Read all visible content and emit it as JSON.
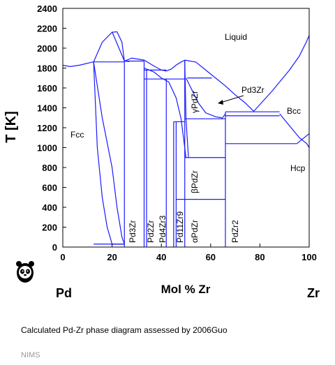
{
  "chart_data": {
    "type": "line",
    "ylabel": "T [K]",
    "xlabel": "Mol % Zr",
    "xlim": [
      0,
      100
    ],
    "ylim": [
      0,
      2400
    ],
    "x_ticks": [
      "0",
      "20",
      "40",
      "60",
      "80",
      "100"
    ],
    "y_ticks": [
      "0",
      "200",
      "400",
      "600",
      "800",
      "1000",
      "1200",
      "1400",
      "1600",
      "1800",
      "2000",
      "2200",
      "2400"
    ],
    "x_end_labels": {
      "left": "Pd",
      "right": "Zr"
    },
    "grid": false,
    "line_color": "#1a1aff",
    "phase_regions": [
      "Liquid",
      "Fcc",
      "Bcc",
      "Hcp"
    ],
    "compounds": [
      "Pd3Zr",
      "Pd2Zr",
      "Pd4Zr3",
      "Pd11Zr9",
      "αPdZr",
      "βPdZr",
      "γPdZr",
      "PdZr2"
    ],
    "compound_callout": "Pd3Zr",
    "series": [
      {
        "x": [
          0,
          3,
          7,
          12,
          12.5
        ],
        "y": [
          1828,
          1815,
          1830,
          1860,
          1862
        ]
      },
      {
        "x": [
          12.5,
          16,
          20,
          22,
          24,
          25
        ],
        "y": [
          1862,
          2060,
          2160,
          2165,
          2060,
          1870
        ]
      },
      {
        "x": [
          25,
          28,
          33,
          37,
          40,
          42
        ],
        "y": [
          1870,
          1900,
          1880,
          1820,
          1780,
          1770
        ]
      },
      {
        "x": [
          42,
          44,
          46,
          48,
          49.5
        ],
        "y": [
          1770,
          1790,
          1830,
          1860,
          1880
        ]
      },
      {
        "x": [
          49.5,
          54,
          58,
          62,
          66,
          70,
          74,
          77.5
        ],
        "y": [
          1880,
          1860,
          1780,
          1700,
          1620,
          1530,
          1450,
          1365
        ]
      },
      {
        "x": [
          77.5,
          85,
          92,
          96,
          99,
          100
        ],
        "y": [
          1365,
          1570,
          1780,
          1920,
          2070,
          2128
        ]
      },
      {
        "x": [
          12.5,
          16,
          20,
          22,
          24,
          25
        ],
        "y": [
          1862,
          1300,
          800,
          400,
          100,
          30
        ]
      },
      {
        "x": [
          12.5,
          14,
          16,
          18,
          20,
          25
        ],
        "y": [
          1862,
          1000,
          500,
          200,
          30,
          30
        ]
      },
      {
        "x": [
          20,
          25,
          27
        ],
        "y": [
          2165,
          1870,
          1865
        ]
      },
      {
        "x": [
          33,
          35,
          37,
          40,
          43
        ],
        "y": [
          1800,
          1780,
          1760,
          1700,
          1660
        ]
      },
      {
        "x": [
          43,
          46,
          48,
          50
        ],
        "y": [
          1660,
          1500,
          1290,
          900
        ]
      },
      {
        "x": [
          50,
          52,
          55,
          58,
          62,
          64.5
        ],
        "y": [
          1700,
          1600,
          1450,
          1350,
          1310,
          1300
        ]
      },
      {
        "x": [
          49.5,
          50,
          51
        ],
        "y": [
          1880,
          1290,
          900
        ]
      },
      {
        "x": [
          88,
          92,
          96,
          99,
          100
        ],
        "y": [
          1340,
          1220,
          1100,
          1040,
          1000
        ]
      },
      {
        "x": [
          95,
          100
        ],
        "y": [
          1040,
          1140
        ]
      }
    ],
    "segments": [
      [
        [
          12.5,
          1862
        ],
        [
          25,
          1862
        ]
      ],
      [
        [
          24.8,
          1870
        ],
        [
          33,
          1870
        ]
      ],
      [
        [
          33,
          1780
        ],
        [
          42,
          1780
        ]
      ],
      [
        [
          33,
          1690
        ],
        [
          49.5,
          1690
        ]
      ],
      [
        [
          50.5,
          1700
        ],
        [
          60.5,
          1700
        ]
      ],
      [
        [
          49.5,
          1290
        ],
        [
          66,
          1290
        ]
      ],
      [
        [
          45,
          1260
        ],
        [
          49.5,
          1260
        ]
      ],
      [
        [
          66,
          1360
        ],
        [
          88,
          1360
        ]
      ],
      [
        [
          66,
          1320
        ],
        [
          88,
          1320
        ]
      ],
      [
        [
          66,
          1040
        ],
        [
          95,
          1040
        ]
      ],
      [
        [
          49.5,
          900
        ],
        [
          66,
          900
        ]
      ],
      [
        [
          46,
          480
        ],
        [
          66,
          480
        ]
      ],
      [
        [
          12.5,
          30
        ],
        [
          25,
          30
        ]
      ],
      [
        [
          25,
          0
        ],
        [
          25,
          1870
        ]
      ],
      [
        [
          33,
          0
        ],
        [
          33,
          1870
        ]
      ],
      [
        [
          34,
          0
        ],
        [
          34,
          1780
        ]
      ],
      [
        [
          42,
          0
        ],
        [
          42,
          1690
        ]
      ],
      [
        [
          45,
          0
        ],
        [
          45,
          1260
        ]
      ],
      [
        [
          46,
          0
        ],
        [
          46,
          1260
        ]
      ],
      [
        [
          49.5,
          0
        ],
        [
          49.5,
          1880
        ]
      ],
      [
        [
          66,
          0
        ],
        [
          66,
          1360
        ]
      ],
      [
        [
          64.5,
          1290
        ],
        [
          66,
          1340
        ]
      ]
    ]
  },
  "caption": "Calculated Pd-Zr phase diagram assessed by 2006Guo",
  "credit": "NIMS"
}
